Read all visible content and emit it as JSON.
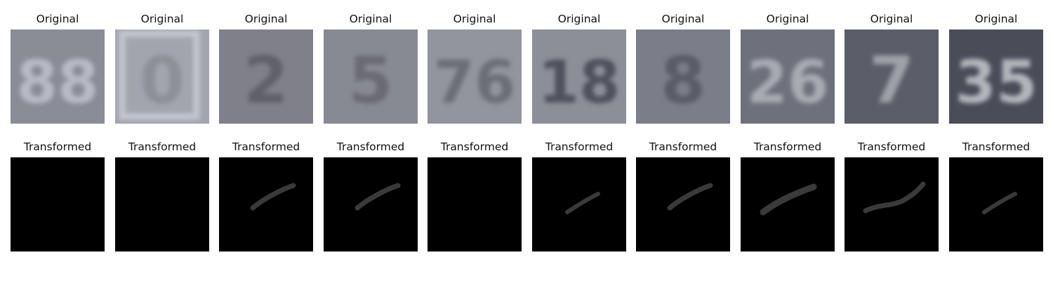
{
  "figure": {
    "rows": [
      {
        "row_label": "Original",
        "panels": [
          {
            "title": "Original",
            "digits": "88",
            "bg": "#8a8c96",
            "fg": "#b8bac4",
            "frame": false
          },
          {
            "title": "Original",
            "digits": "0",
            "bg": "#a2a5ae",
            "fg": "#8d9099",
            "frame": true
          },
          {
            "title": "Original",
            "digits": "2",
            "bg": "#7f8089",
            "fg": "#60616b",
            "frame": false
          },
          {
            "title": "Original",
            "digits": "5",
            "bg": "#888a93",
            "fg": "#6a6b74",
            "frame": false
          },
          {
            "title": "Original",
            "digits": "76",
            "bg": "#92959c",
            "fg": "#6c6e76",
            "frame": false
          },
          {
            "title": "Original",
            "digits": "18",
            "bg": "#8c8f98",
            "fg": "#4f515c",
            "frame": false
          },
          {
            "title": "Original",
            "digits": "8",
            "bg": "#7b7e88",
            "fg": "#5a5c66",
            "frame": false
          },
          {
            "title": "Original",
            "digits": "26",
            "bg": "#6e717b",
            "fg": "#a9abb3",
            "frame": false
          },
          {
            "title": "Original",
            "digits": "7",
            "bg": "#5b5e68",
            "fg": "#9fa1a8",
            "frame": false
          },
          {
            "title": "Original",
            "digits": "35",
            "bg": "#4a4d58",
            "fg": "#b3b5bc",
            "frame": false
          }
        ]
      },
      {
        "row_label": "Transformed",
        "panels": [
          {
            "title": "Transformed",
            "stroke": "none"
          },
          {
            "title": "Transformed",
            "stroke": "none"
          },
          {
            "title": "Transformed",
            "stroke": "short-diagonal"
          },
          {
            "title": "Transformed",
            "stroke": "short-diagonal"
          },
          {
            "title": "Transformed",
            "stroke": "none"
          },
          {
            "title": "Transformed",
            "stroke": "small-diagonal"
          },
          {
            "title": "Transformed",
            "stroke": "short-diagonal"
          },
          {
            "title": "Transformed",
            "stroke": "long-curve"
          },
          {
            "title": "Transformed",
            "stroke": "wave"
          },
          {
            "title": "Transformed",
            "stroke": "small-diagonal"
          }
        ]
      }
    ],
    "colors": {
      "background": "#ffffff",
      "title_text": "#111111",
      "transformed_bg": "#000000",
      "transformed_stroke": "#3a3a3a"
    }
  }
}
